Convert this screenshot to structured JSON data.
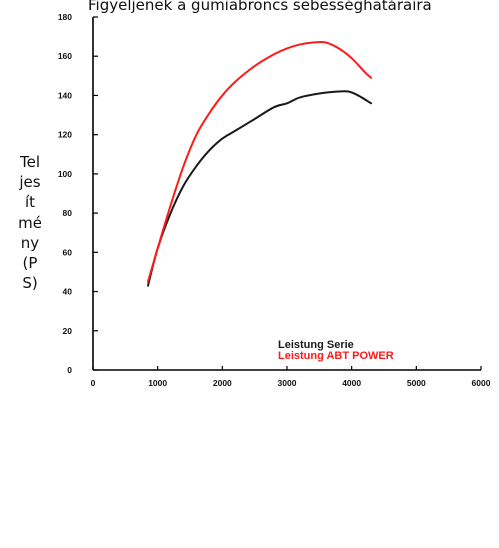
{
  "caption": "Figyeljenek a gumiabroncs sebességhatáraira",
  "chart_data": {
    "type": "line",
    "title": "",
    "xlabel": "",
    "ylabel": "Teljesítmény (PS)",
    "xlim": [
      0,
      6000
    ],
    "ylim": [
      0,
      180
    ],
    "x_ticks": [
      "0",
      "1000",
      "2000",
      "3000",
      "4000",
      "5000",
      "6000"
    ],
    "y_ticks": [
      "0",
      "20",
      "40",
      "60",
      "80",
      "100",
      "120",
      "140",
      "160",
      "180"
    ],
    "grid": false,
    "legend_position": "bottom-right",
    "series": [
      {
        "name": "Leistung Serie",
        "color": "#1a1a1a",
        "x": [
          850,
          1000,
          1200,
          1400,
          1600,
          1800,
          2000,
          2200,
          2500,
          2800,
          3000,
          3200,
          3500,
          3800,
          3950,
          4100,
          4300
        ],
        "y": [
          43,
          62,
          80,
          94,
          104,
          112,
          118,
          122,
          128,
          134,
          136,
          139,
          141,
          142,
          142,
          140,
          136
        ]
      },
      {
        "name": "Leistung ABT POWER",
        "color": "#ff1a1a",
        "x": [
          850,
          1000,
          1200,
          1400,
          1600,
          1800,
          2000,
          2200,
          2500,
          2800,
          3000,
          3200,
          3400,
          3600,
          3800,
          4000,
          4200,
          4300
        ],
        "y": [
          45,
          62,
          84,
          104,
          120,
          131,
          140,
          147,
          155,
          161,
          164,
          166,
          167,
          167,
          164,
          159,
          152,
          149
        ]
      }
    ]
  }
}
